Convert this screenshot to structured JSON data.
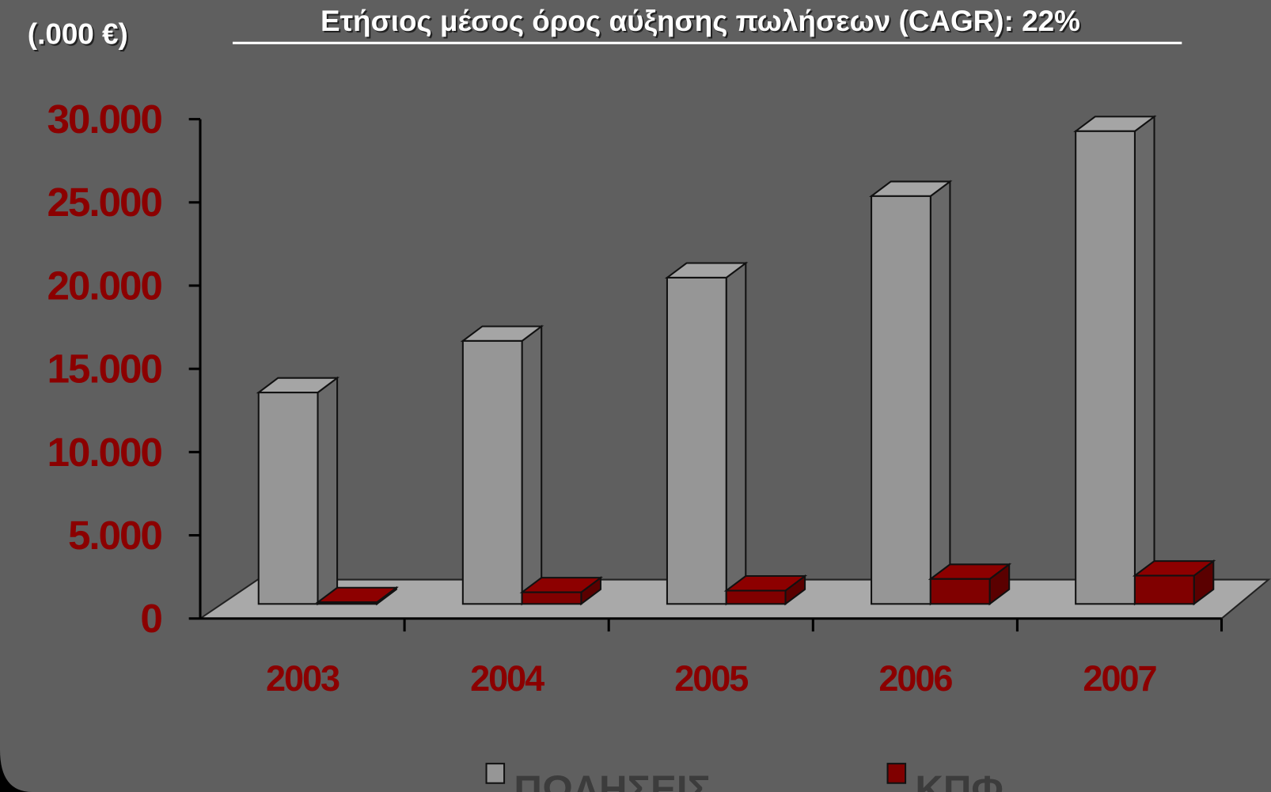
{
  "chart_data": {
    "type": "bar3d",
    "title": "Ετήσιος μέσος όρος αύξησης πωλήσεων (CAGR): 22%",
    "y_axis_label": "(.000 €)",
    "categories": [
      "2003",
      "2004",
      "2005",
      "2006",
      "2007"
    ],
    "series": [
      {
        "name": "ΠΩΛΗΣΕΙΣ",
        "color": "#969696",
        "values": [
          12700,
          15800,
          19600,
          24500,
          28400
        ]
      },
      {
        "name": "ΚΠΦ",
        "color": "#800000",
        "values": [
          100,
          700,
          800,
          1500,
          1700
        ]
      }
    ],
    "ylim": [
      0,
      30000
    ],
    "yticks": [
      {
        "value": 0,
        "label": "0"
      },
      {
        "value": 5000,
        "label": "5.000"
      },
      {
        "value": 10000,
        "label": "10.000"
      },
      {
        "value": 15000,
        "label": "15.000"
      },
      {
        "value": 20000,
        "label": "20.000"
      },
      {
        "value": 25000,
        "label": "25.000"
      },
      {
        "value": 30000,
        "label": "30.000"
      }
    ]
  }
}
